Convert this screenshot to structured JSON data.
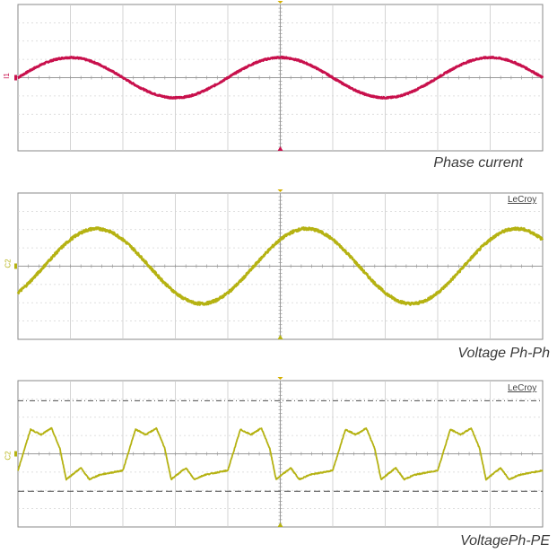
{
  "chart_data": [
    {
      "type": "line",
      "title": "Phase current",
      "brand": "",
      "channel_label": "I1",
      "color": "#c8104c",
      "waveform": "sine",
      "x_divisions": 10,
      "y_divisions": 8,
      "grid": true,
      "cycles": 2.5,
      "phase_deg": 0,
      "amplitude_div": 1.1,
      "offset_div": 0,
      "noise_div": 0.04,
      "reference_lines": []
    },
    {
      "type": "line",
      "title": "Voltage  Ph-Ph",
      "brand": "LeCroy",
      "channel_label": "C2",
      "color": "#b5b212",
      "waveform": "sine",
      "x_divisions": 10,
      "y_divisions": 8,
      "grid": true,
      "cycles": 2.5,
      "phase_deg": -45,
      "amplitude_div": 2.05,
      "offset_div": 0,
      "noise_div": 0.07,
      "reference_lines": []
    },
    {
      "type": "line",
      "title": "VoltagePh-PE",
      "brand": "LeCroy",
      "channel_label": "C2",
      "color": "#b5b212",
      "waveform": "sixstep",
      "x_divisions": 10,
      "y_divisions": 8,
      "grid": true,
      "cycles": 5,
      "phase_deg": 0,
      "amplitude_div": 1.4,
      "offset_div": 0,
      "noise_div": 0.03,
      "reference_lines": [
        {
          "level_div": 2.9,
          "style": "dash-dot"
        },
        {
          "level_div": -2.05,
          "style": "dashed"
        }
      ]
    }
  ]
}
